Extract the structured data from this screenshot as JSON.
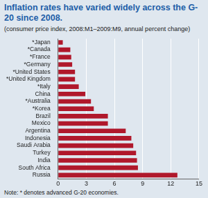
{
  "chart_data": {
    "type": "bar",
    "orientation": "horizontal",
    "title": "Inflation rates have varied widely across the G-20 since 2008.",
    "subtitle": "(consumer price index, 2008:M1–2009:M9, annual percent change)",
    "note": "Note: * denotes advanced G-20 economies.",
    "categories": [
      "*Japan",
      "*Canada",
      "*France",
      "*Germany",
      "*United States",
      "*United Kingdom",
      "*Italy",
      "China",
      "*Australia",
      "*Korea",
      "Brazil",
      "Mexico",
      "Argentina",
      "Indonesia",
      "Saudi Arabia",
      "Turkey",
      "India",
      "South Africa",
      "Russia"
    ],
    "values": [
      0.5,
      1.3,
      1.4,
      1.5,
      1.8,
      1.8,
      2.2,
      2.9,
      3.5,
      3.8,
      5.3,
      5.3,
      7.2,
      7.8,
      8.0,
      8.3,
      8.4,
      8.5,
      12.7
    ],
    "color": "#b0182b",
    "xlim": [
      0,
      15
    ],
    "xticks": [
      0,
      3,
      6,
      9,
      12,
      15
    ],
    "grid": true
  }
}
